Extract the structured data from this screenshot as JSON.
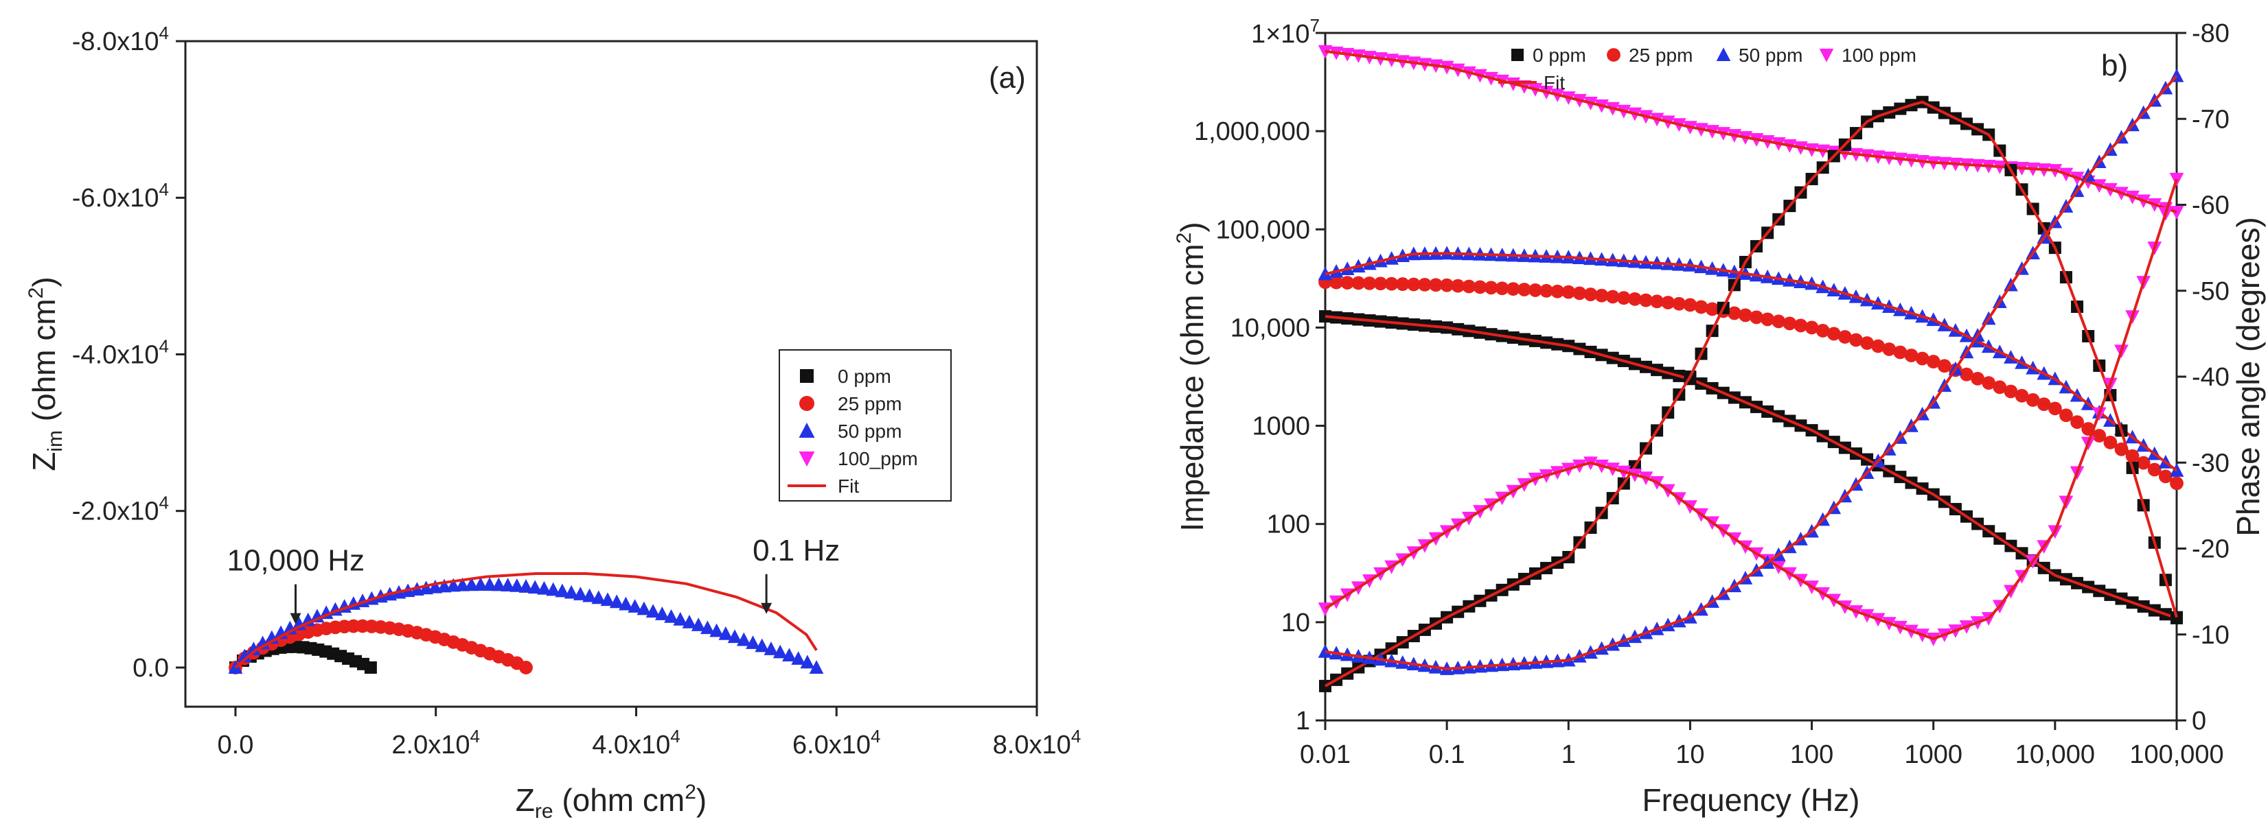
{
  "chart_data": [
    {
      "type": "scatter",
      "panel_label": "(a)",
      "title": "",
      "xlabel": {
        "main": "Z",
        "sub": "re",
        "unit_pre": " (ohm cm",
        "unit_sup": "2",
        "unit_post": ")"
      },
      "ylabel": {
        "main": "Z",
        "sub": "im",
        "unit_pre": " (ohm cm",
        "unit_sup": "2",
        "unit_post": ")"
      },
      "xlim": [
        -5000,
        80000
      ],
      "ylim": [
        -5000,
        80000
      ],
      "y_inverted_sign": true,
      "x_ticks": [
        {
          "value": 0,
          "label": "0.0"
        },
        {
          "value": 20000,
          "label": "2.0x10",
          "exp": "4"
        },
        {
          "value": 40000,
          "label": "4.0x10",
          "exp": "4"
        },
        {
          "value": 60000,
          "label": "6.0x10",
          "exp": "4"
        },
        {
          "value": 80000,
          "label": "8.0x10",
          "exp": "4"
        }
      ],
      "y_ticks": [
        {
          "value": 0,
          "label": "0.0"
        },
        {
          "value": 20000,
          "label": "-2.0x10",
          "exp": "4"
        },
        {
          "value": 40000,
          "label": "-4.0x10",
          "exp": "4"
        },
        {
          "value": 60000,
          "label": "-6.0x10",
          "exp": "4"
        },
        {
          "value": 80000,
          "label": "-8.0x10",
          "exp": "4"
        }
      ],
      "annotations": [
        {
          "text": "10,000 Hz",
          "x": 6000,
          "y": 4500
        },
        {
          "text": "0.1 Hz",
          "x": 53000,
          "y": 5800
        }
      ],
      "legend": {
        "position": "center-right",
        "entries": [
          {
            "label": "0 ppm",
            "marker": "square",
            "color": "#111111"
          },
          {
            "label": "25 ppm",
            "marker": "circle",
            "color": "#e8201c"
          },
          {
            "label": "50 ppm",
            "marker": "triangle-up",
            "color": "#2233e6"
          },
          {
            "label": "100_ppm",
            "marker": "triangle-down",
            "color": "#ff22ee"
          },
          {
            "label": "Fit",
            "marker": "line",
            "color": "#e0201b"
          }
        ]
      },
      "series": [
        {
          "name": "0 ppm",
          "shape": "arc",
          "x_end": 13500,
          "peak": 3000
        },
        {
          "name": "25 ppm",
          "shape": "arc",
          "x_end": 29000,
          "peak": 6000
        },
        {
          "name": "50 ppm",
          "shape": "arc",
          "x_end": 58000,
          "peak": 12000
        },
        {
          "name": "Fit",
          "points": [
            [
              0,
              0
            ],
            [
              2000,
              2200
            ],
            [
              6000,
              5000
            ],
            [
              10000,
              7200
            ],
            [
              15000,
              9300
            ],
            [
              20000,
              10700
            ],
            [
              25000,
              11600
            ],
            [
              30000,
              12000
            ],
            [
              35000,
              12000
            ],
            [
              40000,
              11600
            ],
            [
              45000,
              10700
            ],
            [
              50000,
              9000
            ],
            [
              54000,
              7000
            ],
            [
              57000,
              4200
            ],
            [
              58000,
              2200
            ]
          ]
        }
      ]
    },
    {
      "type": "scatter",
      "panel_label": "b)",
      "title": "",
      "xlabel": "Frequency (Hz)",
      "ylabel_left": {
        "pre": "Impedance (ohm cm",
        "sup": "2",
        "post": ")"
      },
      "ylabel_right": "Phase angle (degrees)",
      "x_scale": "log",
      "y_left_scale": "log",
      "xlim": [
        0.01,
        100000
      ],
      "ylim_left": [
        1,
        10000000
      ],
      "ylim_right": [
        0,
        -80
      ],
      "x_ticks": [
        "0.01",
        "0.1",
        "1",
        "10",
        "100",
        "1000",
        "10,000",
        "100,000"
      ],
      "y_left_ticks": [
        "1",
        "10",
        "100",
        "1000",
        "10,000",
        "100,000",
        "1,000,000"
      ],
      "y_left_top_label": {
        "base": "1×10",
        "exp": "7"
      },
      "y_right_ticks": [
        "0",
        "-10",
        "-20",
        "-30",
        "-40",
        "-50",
        "-60",
        "-70",
        "-80"
      ],
      "legend": {
        "position": "top-right",
        "entries": [
          {
            "label": "0 ppm",
            "marker": "square",
            "color": "#111111"
          },
          {
            "label": "25 ppm",
            "marker": "circle",
            "color": "#e8201c"
          },
          {
            "label": "50 ppm",
            "marker": "triangle-up",
            "color": "#2233e6"
          },
          {
            "label": "100 ppm",
            "marker": "triangle-down",
            "color": "#ff22ee"
          },
          {
            "label": "Fit",
            "marker": "line",
            "color": "#e0201b"
          }
        ]
      },
      "series": [
        {
          "name": "0 ppm impedance",
          "marker": "square",
          "color": "#111111",
          "points": [
            [
              0.01,
              13000
            ],
            [
              0.1,
              10000
            ],
            [
              1,
              6500
            ],
            [
              10,
              3000
            ],
            [
              100,
              900
            ],
            [
              1000,
              200
            ],
            [
              10000,
              30
            ],
            [
              100000,
              11
            ]
          ]
        },
        {
          "name": "25 ppm impedance",
          "marker": "circle",
          "color": "#e8201c",
          "points": [
            [
              0.01,
              29000
            ],
            [
              0.1,
              27000
            ],
            [
              1,
              23000
            ],
            [
              10,
              17000
            ],
            [
              100,
              10000
            ],
            [
              1000,
              4500
            ],
            [
              10000,
              1500
            ],
            [
              100000,
              260
            ]
          ]
        },
        {
          "name": "50 ppm impedance",
          "marker": "triangle-up",
          "color": "#2233e6",
          "points": [
            [
              0.01,
              35000
            ],
            [
              0.05,
              56000
            ],
            [
              0.1,
              57000
            ],
            [
              1,
              52000
            ],
            [
              10,
              43000
            ],
            [
              100,
              28000
            ],
            [
              1000,
              12000
            ],
            [
              10000,
              3000
            ],
            [
              100000,
              350
            ]
          ]
        },
        {
          "name": "100 ppm impedance",
          "marker": "triangle-down",
          "color": "#ff22ee",
          "points": [
            [
              0.01,
              6500000
            ],
            [
              0.1,
              4500000
            ],
            [
              1,
              2200000
            ],
            [
              10,
              1100000
            ],
            [
              100,
              650000
            ],
            [
              1000,
              480000
            ],
            [
              10000,
              400000
            ],
            [
              100000,
              150000
            ]
          ]
        },
        {
          "name": "0 ppm phase",
          "marker": "square",
          "color": "#111111",
          "axis": "right",
          "points": [
            [
              0.01,
              -4
            ],
            [
              0.1,
              -12
            ],
            [
              1,
              -19
            ],
            [
              3,
              -28
            ],
            [
              10,
              -40
            ],
            [
              30,
              -54
            ],
            [
              100,
              -63
            ],
            [
              300,
              -70
            ],
            [
              800,
              -72
            ],
            [
              3000,
              -68
            ],
            [
              10000,
              -55
            ],
            [
              30000,
              -37
            ],
            [
              100000,
              -12
            ]
          ]
        },
        {
          "name": "100 ppm phase",
          "marker": "triangle-down",
          "color": "#ff22ee",
          "axis": "right",
          "points": [
            [
              0.01,
              -13
            ],
            [
              0.1,
              -22
            ],
            [
              0.5,
              -28
            ],
            [
              1.5,
              -30
            ],
            [
              5,
              -28
            ],
            [
              30,
              -20
            ],
            [
              200,
              -13
            ],
            [
              1000,
              -9.5
            ],
            [
              3000,
              -12
            ],
            [
              10000,
              -22
            ],
            [
              30000,
              -40
            ],
            [
              100000,
              -63
            ]
          ]
        },
        {
          "name": "50 ppm phase",
          "marker": "triangle-up",
          "color": "#2233e6",
          "axis": "right",
          "points": [
            [
              0.01,
              -8
            ],
            [
              0.1,
              -6
            ],
            [
              1,
              -7
            ],
            [
              10,
              -12
            ],
            [
              100,
              -22
            ],
            [
              1000,
              -37
            ],
            [
              5000,
              -52
            ],
            [
              20000,
              -64
            ],
            [
              100000,
              -75
            ]
          ]
        }
      ]
    }
  ]
}
